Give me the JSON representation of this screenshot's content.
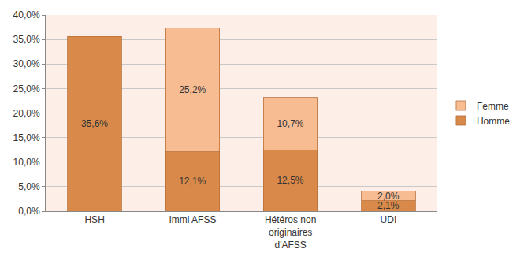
{
  "chart_data": {
    "type": "bar",
    "stacked": true,
    "data_labels": true,
    "grid": true,
    "legend": "right",
    "categories": [
      "HSH",
      "Immi AFSS",
      "Hétéros non originaires d'AFSS",
      "UDI"
    ],
    "series": [
      {
        "name": "Homme",
        "color": "#d98a4a",
        "values": [
          35.6,
          12.1,
          12.5,
          2.1
        ],
        "value_labels": [
          "35,6%",
          "12,1%",
          "12,5%",
          "2,1%"
        ]
      },
      {
        "name": "Femme",
        "color": "#f8bc93",
        "values": [
          null,
          25.2,
          10.7,
          2.0
        ],
        "value_labels": [
          null,
          "25,2%",
          "10,7%",
          "2,0%"
        ]
      }
    ],
    "ylim": [
      0,
      40
    ],
    "yticks": [
      {
        "value": 0,
        "label": "0,0%"
      },
      {
        "value": 5,
        "label": "5,0%"
      },
      {
        "value": 10,
        "label": "10,0%"
      },
      {
        "value": 15,
        "label": "15,0%"
      },
      {
        "value": 20,
        "label": "20,0%"
      },
      {
        "value": 25,
        "label": "25,0%"
      },
      {
        "value": 30,
        "label": "30,0%"
      },
      {
        "value": 35,
        "label": "35,0%"
      },
      {
        "value": 40,
        "label": "40,0%"
      }
    ]
  }
}
